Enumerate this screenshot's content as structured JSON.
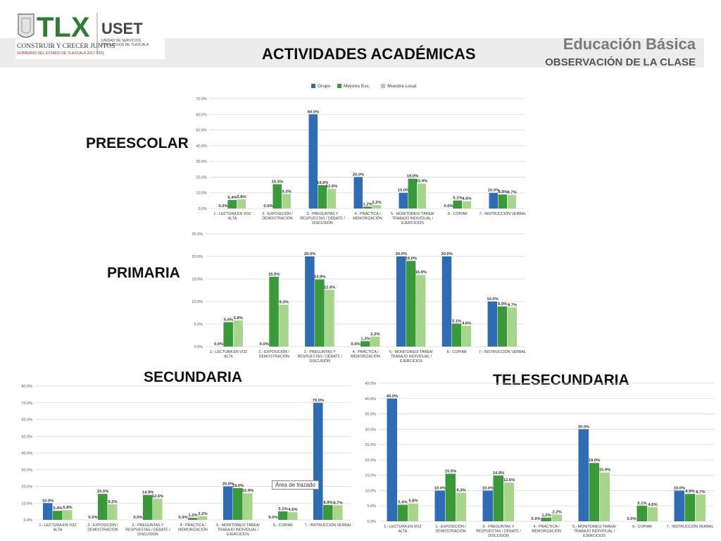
{
  "header": {
    "logo_text": "TLX",
    "logo_slogan": "CONSTRUIR Y CRECER JUNTOS",
    "logo_gov": "GOBIERNO DEL ESTADO DE TLAXCALA 2017-2021",
    "org_name": "USET",
    "org_line1": "UNIDAD DE SERVICIOS",
    "org_line2": "EDUCATIVOS DE TLAXCALA",
    "title": "Educación Básica",
    "subtitle": "OBSERVACIÓN DE LA CLASE",
    "page_title": "ACTIVIDADES ACADÉMICAS"
  },
  "colors": {
    "Grupo": "#2e6db5",
    "Mejores Esc.": "#3a9a3a",
    "Muestra Local": "#a6d68c"
  },
  "sections": {
    "preescolar": "PREESCOLAR",
    "primaria": "PRIMARIA",
    "secundaria": "SECUNDARIA",
    "telesecundaria": "TELESECUNDARIA"
  },
  "tooltip": "Área de trazado",
  "chart_data": [
    {
      "id": "preescolar",
      "type": "bar",
      "categories": [
        "1.- LECTURA EN VOZ|ALTA",
        "2.- EXPOSICIÓN /|DEMOSTRACIÓN",
        "3.- PREGUNTAS Y|RESPUESTAS / DEBATE /|DISCUSIÓN",
        "4.- PRÁCTICA /|MEMORIZACIÓN",
        "5.- MONITOREO/ TAREA/|TRABAJO INDIVIDUAL /|EJERCICIOS",
        "6.- COPIAR",
        "7.- INSTRUCCIÓN VERBAL"
      ],
      "series": [
        {
          "name": "Grupo",
          "values": [
            0.0,
            0.0,
            60.0,
            20.0,
            10.0,
            0.0,
            10.0
          ]
        },
        {
          "name": "Mejores Esc.",
          "values": [
            5.4,
            15.5,
            14.9,
            1.2,
            19.0,
            5.1,
            8.9
          ]
        },
        {
          "name": "Muestra Local",
          "values": [
            5.8,
            9.3,
            12.6,
            2.2,
            15.9,
            4.6,
            8.7
          ]
        }
      ],
      "ylim": [
        0,
        70
      ],
      "yticks": [
        0,
        10,
        20,
        30,
        40,
        50,
        60,
        70
      ],
      "legend": "top",
      "grid": true
    },
    {
      "id": "primaria",
      "type": "bar",
      "categories": [
        "1.- LECTURA EN VOZ|ALTA",
        "2.- EXPOSICIÓN /|DEMOSTRACIÓN",
        "3.- PREGUNTAS Y|RESPUESTAS / DEBATE /|DISCUSIÓN",
        "4.- PRÁCTICA /|MEMORIZACIÓN",
        "5.- MONITOREO/ TAREA/|TRABAJO INDIVIDUAL /|EJERCICIOS",
        "6.- COPIAR",
        "7.- INSTRUCCIÓN VERBAL"
      ],
      "series": [
        {
          "name": "Grupo",
          "values": [
            0.0,
            0.0,
            20.0,
            0.0,
            20.0,
            20.0,
            10.0
          ]
        },
        {
          "name": "Mejores Esc.",
          "values": [
            5.4,
            15.5,
            14.9,
            1.2,
            19.0,
            5.1,
            8.9
          ]
        },
        {
          "name": "Muestra Local",
          "values": [
            5.8,
            9.3,
            12.6,
            2.2,
            15.9,
            4.6,
            8.7
          ]
        }
      ],
      "ylim": [
        0,
        25
      ],
      "yticks": [
        0,
        5,
        10,
        15,
        20,
        25
      ],
      "legend": "none",
      "grid": true
    },
    {
      "id": "secundaria",
      "type": "bar",
      "categories": [
        "1.- LECTURA EN VOZ|ALTA",
        "2.- EXPOSICIÓN /|DEMOSTRACIÓN",
        "3.- PREGUNTAS Y|RESPUESTAS / DEBATE /|DISCUSIÓN",
        "4.- PRÁCTICA /|MEMORIZACIÓN",
        "5.- MONITOREO/ TAREA/|TRABAJO INDIVIDUAL /|EJERCICIOS",
        "6.- COPIAR",
        "7.- INSTRUCCIÓN VERBAL"
      ],
      "series": [
        {
          "name": "Grupo",
          "values": [
            10.0,
            0.0,
            0.0,
            0.0,
            20.0,
            0.0,
            70.0
          ]
        },
        {
          "name": "Mejores Esc.",
          "values": [
            5.4,
            15.5,
            14.9,
            1.2,
            19.0,
            5.1,
            8.9
          ]
        },
        {
          "name": "Muestra Local",
          "values": [
            5.8,
            9.3,
            12.6,
            2.2,
            15.9,
            4.6,
            8.7
          ]
        }
      ],
      "ylim": [
        0,
        80
      ],
      "yticks": [
        0,
        10,
        20,
        30,
        40,
        50,
        60,
        70,
        80
      ],
      "legend": "none",
      "grid": true
    },
    {
      "id": "telesecundaria",
      "type": "bar",
      "categories": [
        "1.- LECTURA EN VOZ|ALTA",
        "2.- EXPOSICIÓN /|DEMOSTRACIÓN",
        "3.- PREGUNTAS Y|RESPUESTAS / DEBATE /|DISCUSIÓN",
        "4.- PRÁCTICA /|MEMORIZACIÓN",
        "5.- MONITOREO/ TAREA/|TRABAJO INDIVIDUAL /|EJERCICIOS",
        "6.- COPIAR",
        "7.- INSTRUCCIÓN VERBAL"
      ],
      "series": [
        {
          "name": "Grupo",
          "values": [
            40.0,
            10.0,
            10.0,
            0.0,
            30.0,
            0.0,
            10.0
          ]
        },
        {
          "name": "Mejores Esc.",
          "values": [
            5.4,
            15.5,
            14.9,
            1.2,
            19.0,
            5.1,
            8.9
          ]
        },
        {
          "name": "Muestra Local",
          "values": [
            5.8,
            9.3,
            12.6,
            2.2,
            15.9,
            4.6,
            8.7
          ]
        }
      ],
      "ylim": [
        0,
        45
      ],
      "yticks": [
        0,
        5,
        10,
        15,
        20,
        25,
        30,
        35,
        40,
        45
      ],
      "legend": "none",
      "grid": true
    }
  ]
}
